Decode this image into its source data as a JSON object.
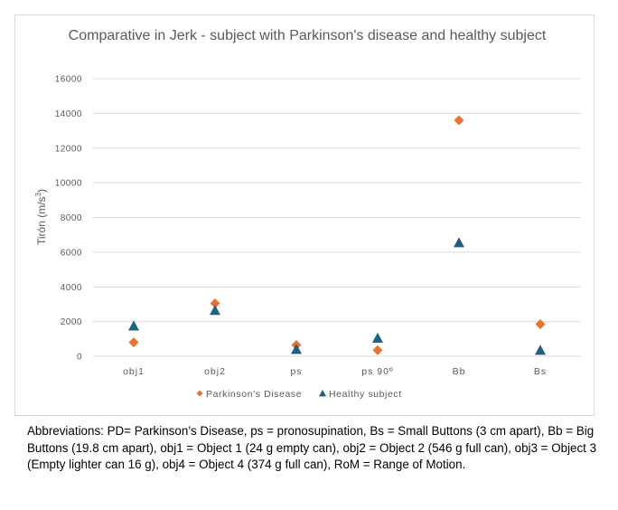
{
  "chart_data": {
    "type": "scatter",
    "title": "Comparative in Jerk  - subject with Parkinson's disease and healthy subject",
    "xlabel": "",
    "ylabel": "Tirón (m/s³)",
    "ylabel_main": "Tirón (m/s",
    "ylabel_sup": "3",
    "ylabel_end": ")",
    "ylim": [
      0,
      16000
    ],
    "yticks": [
      0,
      2000,
      4000,
      6000,
      8000,
      10000,
      12000,
      14000,
      16000
    ],
    "ytick_labels": [
      "0",
      "2000",
      "4000",
      "6000",
      "8000",
      "10000",
      "12000",
      "14000",
      "16000"
    ],
    "categories": [
      "obj1",
      "obj2",
      "ps",
      "ps 90º",
      "Bb",
      "Bs"
    ],
    "grid": true,
    "legend_position": "bottom",
    "series": [
      {
        "name": "Parkinson's Disease",
        "marker": "diamond",
        "color": "#E97132",
        "values": [
          800,
          3050,
          650,
          350,
          13600,
          1850
        ]
      },
      {
        "name": "Healthy subject",
        "marker": "triangle",
        "color": "#1F5F80",
        "values": [
          1750,
          2650,
          400,
          1050,
          6550,
          350
        ]
      }
    ]
  },
  "caption": "Abbreviations: PD= Parkinson’s Disease, ps = pronosupination, Bs = Small Buttons (3 cm apart), Bb = Big Buttons (19.8 cm apart), obj1 = Object 1 (24 g empty can), obj2 = Object 2 (546 g full can), obj3 = Object 3 (Empty lighter can 16 g), obj4 = Object 4 (374 g full can), RoM = Range of Motion."
}
